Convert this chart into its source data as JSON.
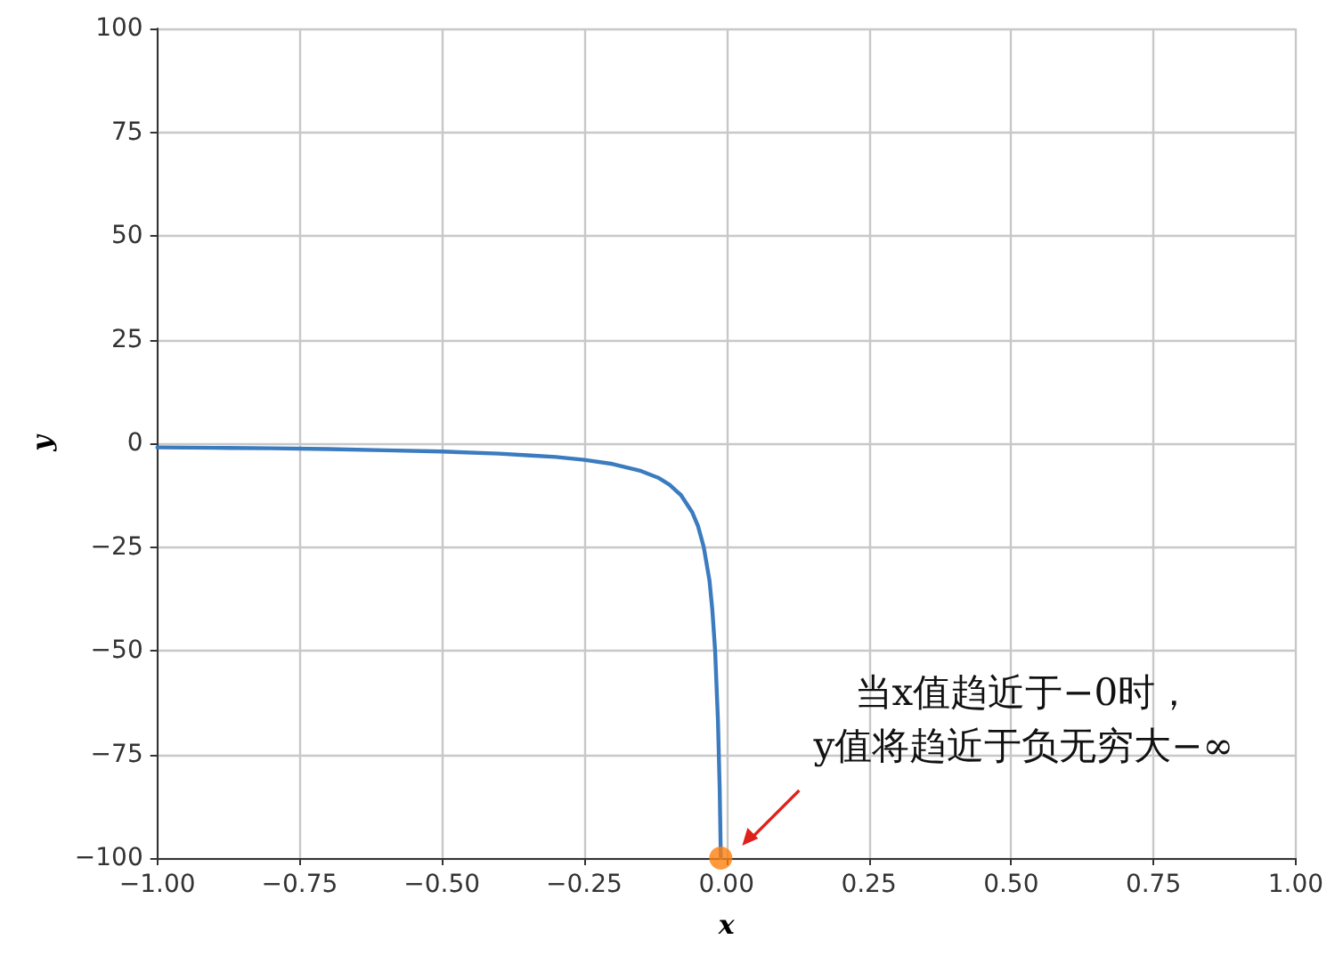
{
  "chart_data": {
    "type": "line",
    "xlabel": "x",
    "ylabel": "y",
    "x": [
      -1,
      -0.9,
      -0.8,
      -0.7,
      -0.6,
      -0.5,
      -0.4,
      -0.35,
      -0.3,
      -0.25,
      -0.2,
      -0.15,
      -0.12,
      -0.1,
      -0.08,
      -0.06,
      -0.05,
      -0.04,
      -0.03,
      -0.025,
      -0.02,
      -0.015,
      -0.012,
      -0.01
    ],
    "series": [
      {
        "color": "#3b7bbf",
        "values": [
          -1,
          -1.1,
          -1.2,
          -1.4,
          -1.7,
          -2,
          -2.5,
          -2.9,
          -3.3,
          -4,
          -5,
          -6.7,
          -8.3,
          -10,
          -12.5,
          -16.7,
          -20,
          -25,
          -33,
          -40,
          -50,
          -67,
          -83,
          -100
        ]
      },
      {
        "type": "scatter",
        "color": "#ff7f0e",
        "x": [
          -0.01
        ],
        "values": [
          -100
        ],
        "marker": "circle"
      }
    ],
    "annotations": [
      "当x值趋近于−0时，\ny值将趋近于负无穷大−∞"
    ],
    "xlim": [
      -1,
      1
    ],
    "xticks": [
      {
        "value": -1,
        "label": "−1.00"
      },
      {
        "value": -0.75,
        "label": "−0.75"
      },
      {
        "value": -0.5,
        "label": "−0.50"
      },
      {
        "value": -0.25,
        "label": "−0.25"
      },
      {
        "value": 0,
        "label": "0.00"
      },
      {
        "value": 0.25,
        "label": "0.25"
      },
      {
        "value": 0.5,
        "label": "0.50"
      },
      {
        "value": 0.75,
        "label": "0.75"
      },
      {
        "value": 1,
        "label": "1.00"
      }
    ],
    "ylim": [
      -100,
      100
    ],
    "yticks": [
      {
        "value": -100,
        "label": "−100"
      },
      {
        "value": -75,
        "label": "−75"
      },
      {
        "value": -50,
        "label": "−50"
      },
      {
        "value": -25,
        "label": "−25"
      },
      0,
      25,
      50,
      75,
      100
    ],
    "grid": true,
    "marker": "none",
    "line_style": "solid"
  }
}
